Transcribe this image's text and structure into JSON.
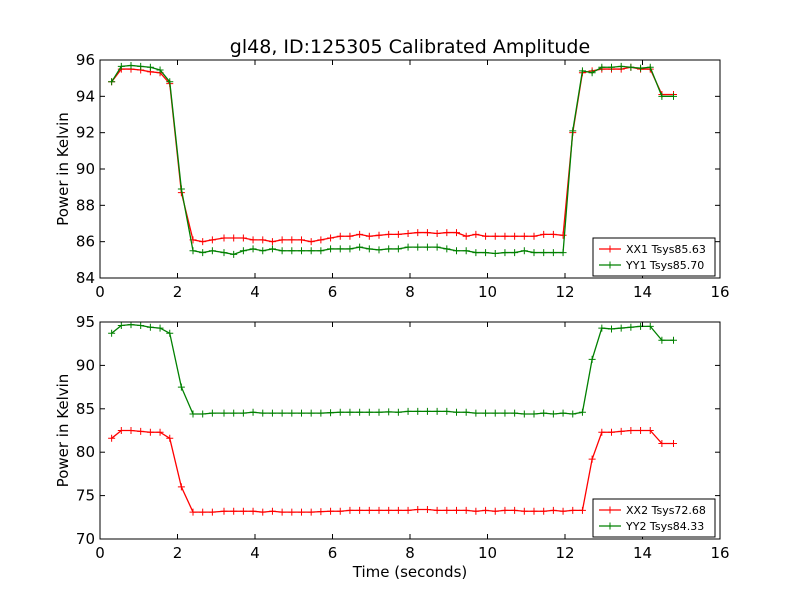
{
  "title": "gl48, ID:125305 Calibrated Amplitude",
  "chart_data": [
    {
      "type": "line",
      "xlabel": "",
      "ylabel": "Power in Kelvin",
      "xlim": [
        0,
        16
      ],
      "ylim": [
        84,
        96
      ],
      "xticks": [
        "0",
        "2",
        "4",
        "6",
        "8",
        "10",
        "12",
        "14",
        "16"
      ],
      "yticks": [
        "84",
        "86",
        "88",
        "90",
        "92",
        "94",
        "96"
      ],
      "grid": false,
      "legend_position": "bottom-right",
      "series": [
        {
          "name": "XX1 Tsys85.63",
          "color": "#ff0000",
          "x": [
            0.3,
            0.55,
            0.8,
            1.05,
            1.3,
            1.55,
            1.8,
            2.1,
            2.4,
            2.65,
            2.9,
            3.2,
            3.45,
            3.7,
            3.95,
            4.2,
            4.45,
            4.7,
            4.95,
            5.2,
            5.45,
            5.7,
            5.95,
            6.2,
            6.45,
            6.7,
            6.95,
            7.2,
            7.45,
            7.7,
            7.95,
            8.2,
            8.45,
            8.7,
            8.95,
            9.2,
            9.45,
            9.7,
            9.95,
            10.2,
            10.45,
            10.7,
            10.95,
            11.2,
            11.45,
            11.7,
            11.95,
            12.2,
            12.45,
            12.7,
            12.95,
            13.2,
            13.45,
            13.7,
            13.95,
            14.2,
            14.5,
            14.8
          ],
          "values": [
            94.8,
            95.5,
            95.5,
            95.45,
            95.35,
            95.3,
            94.7,
            88.7,
            86.1,
            86.0,
            86.1,
            86.2,
            86.2,
            86.2,
            86.1,
            86.1,
            86.0,
            86.1,
            86.1,
            86.1,
            86.0,
            86.1,
            86.2,
            86.3,
            86.3,
            86.4,
            86.3,
            86.35,
            86.4,
            86.4,
            86.45,
            86.5,
            86.5,
            86.45,
            86.5,
            86.5,
            86.3,
            86.4,
            86.3,
            86.3,
            86.3,
            86.3,
            86.3,
            86.3,
            86.4,
            86.4,
            86.35,
            92.0,
            95.3,
            95.4,
            95.5,
            95.5,
            95.5,
            95.6,
            95.5,
            95.5,
            94.1,
            94.1
          ]
        },
        {
          "name": "YY1 Tsys85.70",
          "color": "#008000",
          "x": [
            0.3,
            0.55,
            0.8,
            1.05,
            1.3,
            1.55,
            1.8,
            2.1,
            2.4,
            2.65,
            2.9,
            3.2,
            3.45,
            3.7,
            3.95,
            4.2,
            4.45,
            4.7,
            4.95,
            5.2,
            5.45,
            5.7,
            5.95,
            6.2,
            6.45,
            6.7,
            6.95,
            7.2,
            7.45,
            7.7,
            7.95,
            8.2,
            8.45,
            8.7,
            8.95,
            9.2,
            9.45,
            9.7,
            9.95,
            10.2,
            10.45,
            10.7,
            10.95,
            11.2,
            11.45,
            11.7,
            11.95,
            12.2,
            12.45,
            12.7,
            12.95,
            13.2,
            13.45,
            13.7,
            13.95,
            14.2,
            14.5,
            14.8
          ],
          "values": [
            94.8,
            95.65,
            95.7,
            95.65,
            95.6,
            95.45,
            94.8,
            88.9,
            85.5,
            85.4,
            85.5,
            85.4,
            85.3,
            85.5,
            85.6,
            85.5,
            85.6,
            85.5,
            85.5,
            85.5,
            85.5,
            85.5,
            85.6,
            85.6,
            85.6,
            85.7,
            85.6,
            85.55,
            85.6,
            85.6,
            85.7,
            85.7,
            85.7,
            85.7,
            85.6,
            85.5,
            85.5,
            85.4,
            85.4,
            85.35,
            85.4,
            85.4,
            85.5,
            85.4,
            85.4,
            85.4,
            85.4,
            92.1,
            95.4,
            95.3,
            95.6,
            95.6,
            95.65,
            95.6,
            95.55,
            95.6,
            94.0,
            94.0
          ]
        }
      ]
    },
    {
      "type": "line",
      "xlabel": "Time (seconds)",
      "ylabel": "Power in Kelvin",
      "xlim": [
        0,
        16
      ],
      "ylim": [
        70,
        95
      ],
      "xticks": [
        "0",
        "2",
        "4",
        "6",
        "8",
        "10",
        "12",
        "14",
        "16"
      ],
      "yticks": [
        "70",
        "75",
        "80",
        "85",
        "90",
        "95"
      ],
      "grid": false,
      "legend_position": "bottom-right",
      "series": [
        {
          "name": "XX2 Tsys72.68",
          "color": "#ff0000",
          "x": [
            0.3,
            0.55,
            0.8,
            1.05,
            1.3,
            1.55,
            1.8,
            2.1,
            2.4,
            2.65,
            2.9,
            3.2,
            3.45,
            3.7,
            3.95,
            4.2,
            4.45,
            4.7,
            4.95,
            5.2,
            5.45,
            5.7,
            5.95,
            6.2,
            6.45,
            6.7,
            6.95,
            7.2,
            7.45,
            7.7,
            7.95,
            8.2,
            8.45,
            8.7,
            8.95,
            9.2,
            9.45,
            9.7,
            9.95,
            10.2,
            10.45,
            10.7,
            10.95,
            11.2,
            11.45,
            11.7,
            11.95,
            12.2,
            12.45,
            12.7,
            12.95,
            13.2,
            13.45,
            13.7,
            13.95,
            14.2,
            14.5,
            14.8
          ],
          "values": [
            81.6,
            82.5,
            82.5,
            82.4,
            82.3,
            82.3,
            81.6,
            76.0,
            73.1,
            73.1,
            73.1,
            73.2,
            73.2,
            73.2,
            73.2,
            73.1,
            73.2,
            73.1,
            73.1,
            73.1,
            73.1,
            73.15,
            73.2,
            73.2,
            73.3,
            73.3,
            73.3,
            73.3,
            73.3,
            73.3,
            73.3,
            73.4,
            73.4,
            73.3,
            73.3,
            73.3,
            73.3,
            73.2,
            73.3,
            73.2,
            73.3,
            73.3,
            73.2,
            73.2,
            73.2,
            73.3,
            73.2,
            73.3,
            73.3,
            79.2,
            82.3,
            82.3,
            82.4,
            82.5,
            82.5,
            82.5,
            81.0,
            81.0
          ]
        },
        {
          "name": "YY2 Tsys84.33",
          "color": "#008000",
          "x": [
            0.3,
            0.55,
            0.8,
            1.05,
            1.3,
            1.55,
            1.8,
            2.1,
            2.4,
            2.65,
            2.9,
            3.2,
            3.45,
            3.7,
            3.95,
            4.2,
            4.45,
            4.7,
            4.95,
            5.2,
            5.45,
            5.7,
            5.95,
            6.2,
            6.45,
            6.7,
            6.95,
            7.2,
            7.45,
            7.7,
            7.95,
            8.2,
            8.45,
            8.7,
            8.95,
            9.2,
            9.45,
            9.7,
            9.95,
            10.2,
            10.45,
            10.7,
            10.95,
            11.2,
            11.45,
            11.7,
            11.95,
            12.2,
            12.45,
            12.7,
            12.95,
            13.2,
            13.45,
            13.7,
            13.95,
            14.2,
            14.5,
            14.8
          ],
          "values": [
            93.7,
            94.6,
            94.7,
            94.6,
            94.4,
            94.3,
            93.7,
            87.5,
            84.4,
            84.4,
            84.5,
            84.5,
            84.5,
            84.5,
            84.6,
            84.5,
            84.5,
            84.5,
            84.5,
            84.5,
            84.5,
            84.5,
            84.55,
            84.6,
            84.6,
            84.6,
            84.6,
            84.6,
            84.65,
            84.6,
            84.7,
            84.7,
            84.7,
            84.7,
            84.7,
            84.6,
            84.6,
            84.5,
            84.5,
            84.5,
            84.5,
            84.5,
            84.4,
            84.4,
            84.5,
            84.4,
            84.5,
            84.4,
            84.6,
            90.7,
            94.3,
            94.2,
            94.3,
            94.4,
            94.5,
            94.5,
            92.9,
            92.9
          ]
        }
      ]
    }
  ]
}
